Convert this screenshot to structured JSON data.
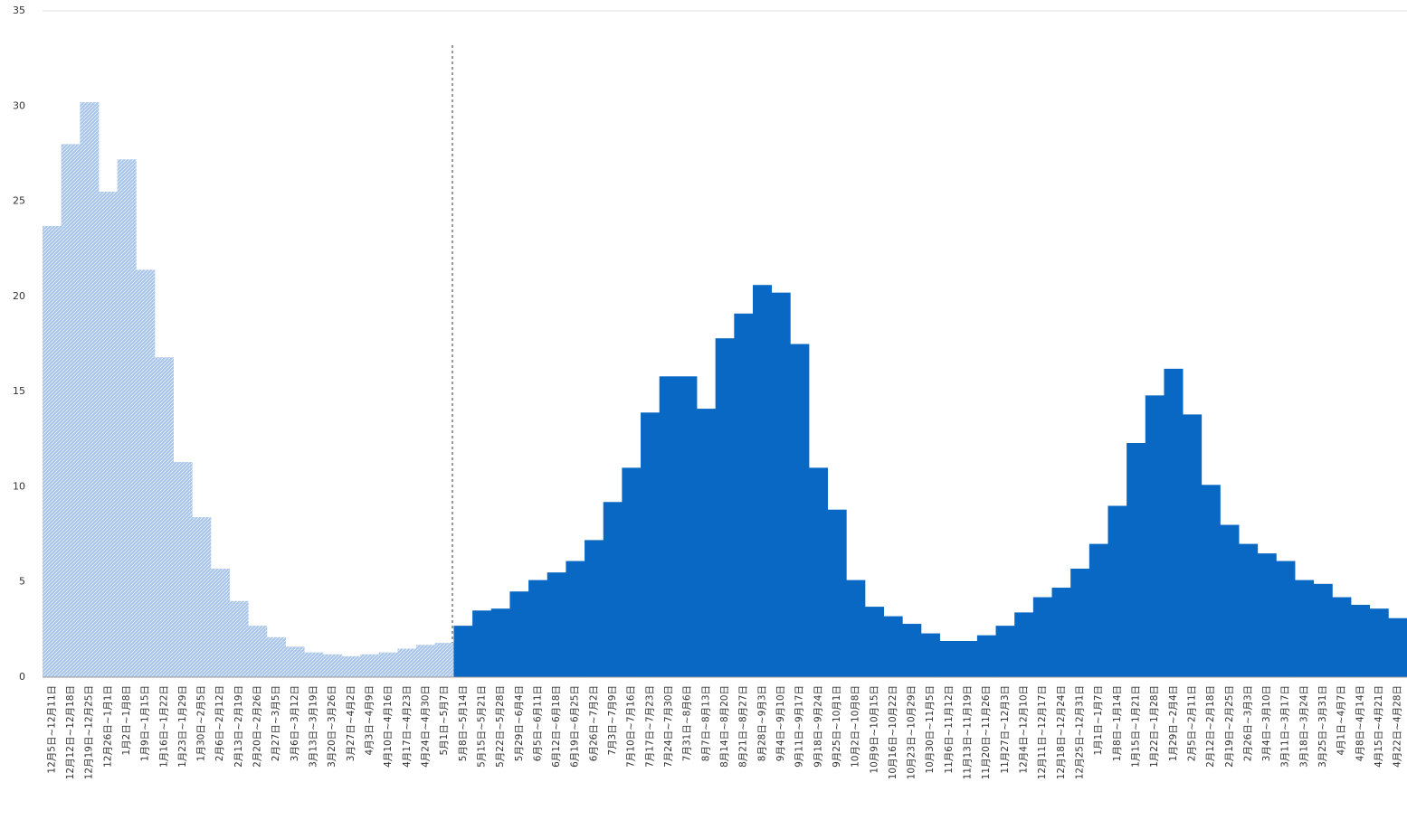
{
  "chart_data": {
    "type": "bar",
    "categories": [
      "12月5日~12月11日",
      "12月12日~12月18日",
      "12月19日~12月25日",
      "12月26日~1月1日",
      "1月2日~1月8日",
      "1月9日~1月15日",
      "1月16日~1月22日",
      "1月23日~1月29日",
      "1月30日~2月5日",
      "2月6日~2月12日",
      "2月13日~2月19日",
      "2月20日~2月26日",
      "2月27日~3月5日",
      "3月6日~3月12日",
      "3月13日~3月19日",
      "3月20日~3月26日",
      "3月27日~4月2日",
      "4月3日~4月9日",
      "4月10日~4月16日",
      "4月17日~4月23日",
      "4月24日~4月30日",
      "5月1日~5月7日",
      "5月8日~5月14日",
      "5月15日~5月21日",
      "5月22日~5月28日",
      "5月29日~6月4日",
      "6月5日~6月11日",
      "6月12日~6月18日",
      "6月19日~6月25日",
      "6月26日~7月2日",
      "7月3日~7月9日",
      "7月10日~7月16日",
      "7月17日~7月23日",
      "7月24日~7月30日",
      "7月31日~8月6日",
      "8月7日~8月13日",
      "8月14日~8月20日",
      "8月21日~8月27日",
      "8月28日~9月3日",
      "9月4日~9月10日",
      "9月11日~9月17日",
      "9月18日~9月24日",
      "9月25日~10月1日",
      "10月2日~10月8日",
      "10月9日~10月15日",
      "10月16日~10月22日",
      "10月23日~10月29日",
      "10月30日~11月5日",
      "11月6日~11月12日",
      "11月13日~11月19日",
      "11月20日~11月26日",
      "11月27日~12月3日",
      "12月4日~12月10日",
      "12月11日~12月17日",
      "12月18日~12月24日",
      "12月25日~12月31日",
      "1月1日~1月7日",
      "1月8日~1月14日",
      "1月15日~1月21日",
      "1月22日~1月28日",
      "1月29日~2月4日",
      "2月5日~2月11日",
      "2月12日~2月18日",
      "2月19日~2月25日",
      "2月26日~3月3日",
      "3月4日~3月10日",
      "3月11日~3月17日",
      "3月18日~3月24日",
      "3月25日~3月31日",
      "4月1日~4月7日",
      "4月8日~4月14日",
      "4月15日~4月21日",
      "4月22日~4月28日"
    ],
    "series": [
      {
        "color": "#a9c6ea",
        "pattern": "hatch",
        "values": [
          23.7,
          28,
          30.2,
          25.5,
          27.2,
          21.4,
          16.8,
          11.3,
          8.4,
          5.7,
          4,
          2.7,
          2.1,
          1.6,
          1.3,
          1.2,
          1.1,
          1.2,
          1.3,
          1.5,
          1.7,
          1.8,
          null,
          null,
          null,
          null,
          null,
          null,
          null,
          null,
          null,
          null,
          null,
          null,
          null,
          null,
          null,
          null,
          null,
          null,
          null,
          null,
          null,
          null,
          null,
          null,
          null,
          null,
          null,
          null,
          null,
          null,
          null,
          null,
          null,
          null,
          null,
          null,
          null,
          null,
          null,
          null,
          null,
          null,
          null,
          null,
          null,
          null,
          null,
          null,
          null,
          null,
          null
        ]
      },
      {
        "color": "#0868c4",
        "pattern": "solid",
        "values": [
          null,
          null,
          null,
          null,
          null,
          null,
          null,
          null,
          null,
          null,
          null,
          null,
          null,
          null,
          null,
          null,
          null,
          null,
          null,
          null,
          null,
          null,
          2.7,
          3.5,
          3.6,
          4.5,
          5.1,
          5.5,
          6.1,
          7.2,
          9.2,
          11,
          13.9,
          15.8,
          15.8,
          14.1,
          17.8,
          19.1,
          20.6,
          20.2,
          17.5,
          11,
          8.8,
          5.1,
          3.7,
          3.2,
          2.8,
          2.3,
          1.9,
          1.9,
          2.2,
          2.7,
          3.4,
          4.2,
          4.7,
          5.7,
          7,
          9,
          12.3,
          14.8,
          16.2,
          13.8,
          10.1,
          8,
          7,
          6.5,
          6.1,
          5.1,
          4.9,
          4.2,
          3.8,
          3.6,
          3.1
        ]
      }
    ],
    "ylim": [
      0,
      35
    ],
    "yticks": [
      0,
      5,
      10,
      15,
      20,
      25,
      30,
      35
    ],
    "grid": false
  }
}
